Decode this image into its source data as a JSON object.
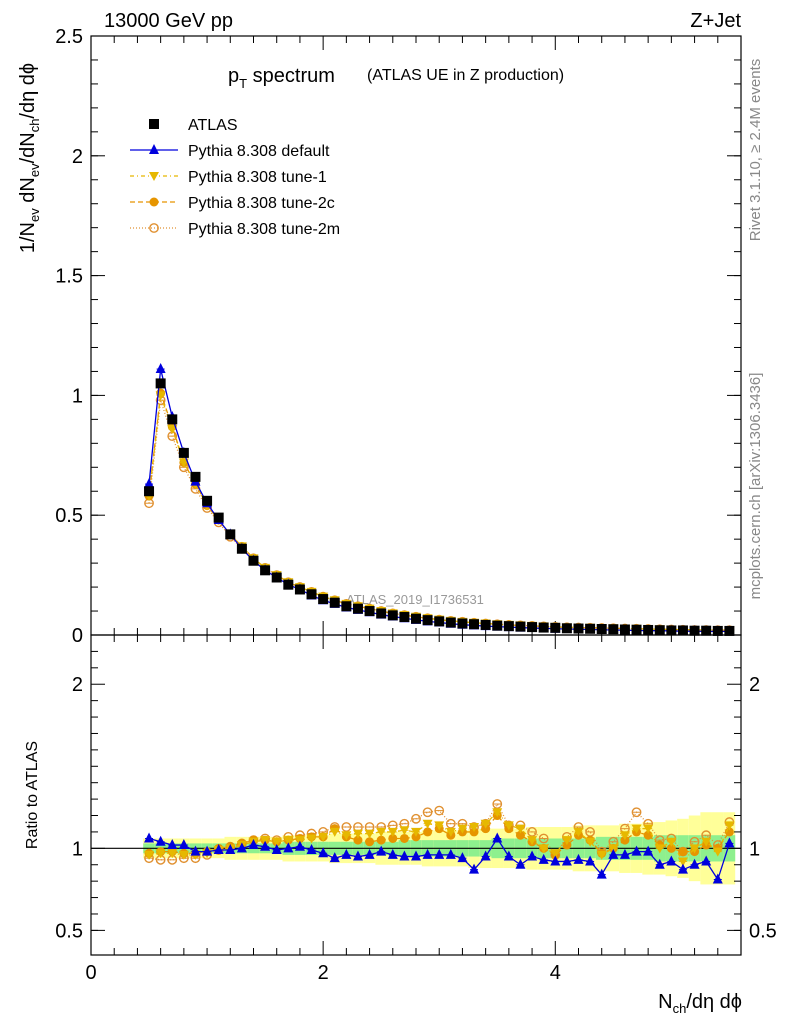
{
  "header": {
    "left": "13000 GeV pp",
    "right": "Z+Jet"
  },
  "plot_title": {
    "main": "p",
    "main_sub": "T",
    "main_rest": " spectrum",
    "paren": "(ATLAS UE in Z production)"
  },
  "side_labels": {
    "rivet": "Rivet 3.1.10, ≥ 2.4M events",
    "mcplots": "mcplots.cern.ch [arXiv:1306.3436]"
  },
  "watermark": "ATLAS_2019_I1736531",
  "colors": {
    "data": "#000000",
    "default": "#0000dd",
    "tune1": "#e6b800",
    "tune2c": "#e69500",
    "tune2m": "#e09030",
    "band_inner": "#8ef08e",
    "band_outer": "#ffff99"
  },
  "chart_data": [
    {
      "type": "line",
      "panel": "main",
      "ylabel": "1/N_ev dN_ev/dN_ch/dη dϕ",
      "xlim": [
        0,
        5.6
      ],
      "ylim": [
        0,
        2.5
      ],
      "yticks": [
        "0",
        "0.5",
        "1",
        "1.5",
        "2",
        "2.5"
      ],
      "x": [
        0.5,
        0.6,
        0.7,
        0.8,
        0.9,
        1.0,
        1.1,
        1.2,
        1.3,
        1.4,
        1.5,
        1.6,
        1.7,
        1.8,
        1.9,
        2.0,
        2.1,
        2.2,
        2.3,
        2.4,
        2.5,
        2.6,
        2.7,
        2.8,
        2.9,
        3.0,
        3.1,
        3.2,
        3.3,
        3.4,
        3.5,
        3.6,
        3.7,
        3.8,
        3.9,
        4.0,
        4.1,
        4.2,
        4.3,
        4.4,
        4.5,
        4.6,
        4.7,
        4.8,
        4.9,
        5.0,
        5.1,
        5.2,
        5.3,
        5.4,
        5.5
      ],
      "series": [
        {
          "name": "ATLAS",
          "marker": "square",
          "values": [
            0.6,
            1.05,
            0.9,
            0.76,
            0.66,
            0.56,
            0.49,
            0.42,
            0.36,
            0.31,
            0.27,
            0.24,
            0.21,
            0.19,
            0.17,
            0.15,
            0.135,
            0.12,
            0.11,
            0.1,
            0.09,
            0.082,
            0.075,
            0.068,
            0.062,
            0.057,
            0.052,
            0.048,
            0.045,
            0.042,
            0.039,
            0.037,
            0.035,
            0.033,
            0.031,
            0.03,
            0.028,
            0.027,
            0.026,
            0.025,
            0.024,
            0.023,
            0.022,
            0.021,
            0.02,
            0.019,
            0.019,
            0.018,
            0.018,
            0.017,
            0.017
          ]
        },
        {
          "name": "Pythia 8.308 default",
          "marker": "triangle-up",
          "values": [
            0.63,
            1.11,
            0.91,
            0.76,
            0.64,
            0.55,
            0.48,
            0.42,
            0.36,
            0.31,
            0.27,
            0.24,
            0.21,
            0.19,
            0.165,
            0.145,
            0.13,
            0.115,
            0.105,
            0.095,
            0.085,
            0.077,
            0.07,
            0.063,
            0.057,
            0.052,
            0.047,
            0.043,
            0.04,
            0.037,
            0.035,
            0.033,
            0.031,
            0.029,
            0.028,
            0.026,
            0.025,
            0.024,
            0.023,
            0.022,
            0.021,
            0.02,
            0.019,
            0.018,
            0.018,
            0.017,
            0.016,
            0.016,
            0.015,
            0.015,
            0.015
          ]
        },
        {
          "name": "Pythia 8.308 tune-1",
          "marker": "triangle-down",
          "values": [
            0.58,
            1.0,
            0.86,
            0.72,
            0.63,
            0.54,
            0.48,
            0.42,
            0.37,
            0.32,
            0.28,
            0.25,
            0.22,
            0.2,
            0.18,
            0.16,
            0.145,
            0.13,
            0.12,
            0.11,
            0.1,
            0.09,
            0.083,
            0.076,
            0.07,
            0.064,
            0.059,
            0.055,
            0.051,
            0.048,
            0.045,
            0.042,
            0.04,
            0.038,
            0.036,
            0.034,
            0.032,
            0.031,
            0.03,
            0.029,
            0.028,
            0.027,
            0.026,
            0.025,
            0.024,
            0.023,
            0.022,
            0.021,
            0.021,
            0.02,
            0.02
          ]
        },
        {
          "name": "Pythia 8.308 tune-2c",
          "marker": "circle",
          "values": [
            0.58,
            1.01,
            0.87,
            0.72,
            0.63,
            0.54,
            0.48,
            0.42,
            0.37,
            0.32,
            0.28,
            0.25,
            0.22,
            0.2,
            0.18,
            0.16,
            0.145,
            0.13,
            0.12,
            0.11,
            0.1,
            0.09,
            0.083,
            0.076,
            0.07,
            0.064,
            0.059,
            0.055,
            0.051,
            0.048,
            0.045,
            0.042,
            0.04,
            0.038,
            0.036,
            0.034,
            0.032,
            0.031,
            0.03,
            0.029,
            0.028,
            0.027,
            0.026,
            0.025,
            0.024,
            0.023,
            0.022,
            0.021,
            0.021,
            0.02,
            0.02
          ]
        },
        {
          "name": "Pythia 8.308 tune-2m",
          "marker": "open-circle",
          "values": [
            0.55,
            0.98,
            0.83,
            0.7,
            0.61,
            0.53,
            0.47,
            0.41,
            0.36,
            0.32,
            0.28,
            0.25,
            0.22,
            0.2,
            0.18,
            0.16,
            0.145,
            0.13,
            0.12,
            0.11,
            0.1,
            0.09,
            0.083,
            0.076,
            0.07,
            0.064,
            0.059,
            0.055,
            0.051,
            0.048,
            0.045,
            0.042,
            0.04,
            0.038,
            0.036,
            0.034,
            0.032,
            0.031,
            0.03,
            0.029,
            0.028,
            0.027,
            0.026,
            0.025,
            0.024,
            0.023,
            0.022,
            0.021,
            0.021,
            0.02,
            0.02
          ]
        }
      ]
    },
    {
      "type": "line",
      "panel": "ratio",
      "xlabel": "N_ch/dη dϕ",
      "ylabel": "Ratio to ATLAS",
      "xlim": [
        0,
        5.6
      ],
      "ylim": [
        0.35,
        2.3
      ],
      "xticks": [
        "0",
        "2",
        "4"
      ],
      "yticks": [
        "0.5",
        "1",
        "2"
      ],
      "x": [
        0.5,
        0.6,
        0.7,
        0.8,
        0.9,
        1.0,
        1.1,
        1.2,
        1.3,
        1.4,
        1.5,
        1.6,
        1.7,
        1.8,
        1.9,
        2.0,
        2.1,
        2.2,
        2.3,
        2.4,
        2.5,
        2.6,
        2.7,
        2.8,
        2.9,
        3.0,
        3.1,
        3.2,
        3.3,
        3.4,
        3.5,
        3.6,
        3.7,
        3.8,
        3.9,
        4.0,
        4.1,
        4.2,
        4.3,
        4.4,
        4.5,
        4.6,
        4.7,
        4.8,
        4.9,
        5.0,
        5.1,
        5.2,
        5.3,
        5.4,
        5.5
      ],
      "band_inner": [
        0.03,
        0.03,
        0.03,
        0.03,
        0.03,
        0.03,
        0.03,
        0.03,
        0.03,
        0.03,
        0.03,
        0.03,
        0.04,
        0.04,
        0.04,
        0.04,
        0.04,
        0.04,
        0.04,
        0.04,
        0.04,
        0.04,
        0.05,
        0.05,
        0.05,
        0.05,
        0.05,
        0.05,
        0.05,
        0.05,
        0.06,
        0.06,
        0.06,
        0.06,
        0.06,
        0.06,
        0.06,
        0.06,
        0.06,
        0.07,
        0.07,
        0.07,
        0.07,
        0.07,
        0.08,
        0.08,
        0.08,
        0.08,
        0.08,
        0.08,
        0.08
      ],
      "band_outer": [
        0.06,
        0.06,
        0.06,
        0.06,
        0.06,
        0.06,
        0.06,
        0.07,
        0.07,
        0.07,
        0.07,
        0.07,
        0.08,
        0.08,
        0.08,
        0.08,
        0.09,
        0.09,
        0.09,
        0.09,
        0.1,
        0.1,
        0.1,
        0.1,
        0.11,
        0.11,
        0.11,
        0.11,
        0.12,
        0.12,
        0.12,
        0.12,
        0.12,
        0.13,
        0.13,
        0.13,
        0.13,
        0.14,
        0.14,
        0.14,
        0.14,
        0.15,
        0.15,
        0.16,
        0.16,
        0.17,
        0.18,
        0.2,
        0.22,
        0.22,
        0.22
      ],
      "series": [
        {
          "name": "Pythia 8.308 default",
          "marker": "triangle-up",
          "values": [
            1.06,
            1.04,
            1.02,
            1.02,
            0.98,
            0.98,
            0.99,
            0.99,
            1.0,
            1.02,
            1.01,
            0.99,
            1.0,
            1.01,
            0.99,
            0.97,
            0.94,
            0.96,
            0.95,
            0.96,
            0.98,
            0.96,
            0.95,
            0.95,
            0.96,
            0.96,
            0.96,
            0.94,
            0.87,
            0.95,
            1.06,
            0.95,
            0.9,
            0.95,
            0.93,
            0.92,
            0.92,
            0.93,
            0.92,
            0.84,
            0.96,
            0.96,
            0.98,
            0.98,
            0.9,
            0.92,
            0.87,
            0.9,
            0.92,
            0.81,
            1.03
          ]
        },
        {
          "name": "Pythia 8.308 tune-1",
          "marker": "triangle-down",
          "values": [
            0.96,
            0.97,
            0.97,
            0.96,
            0.96,
            0.97,
            0.99,
            1.0,
            1.02,
            1.04,
            1.05,
            1.04,
            1.05,
            1.05,
            1.06,
            1.07,
            1.1,
            1.08,
            1.09,
            1.09,
            1.1,
            1.1,
            1.11,
            1.1,
            1.15,
            1.14,
            1.1,
            1.12,
            1.13,
            1.15,
            1.22,
            1.14,
            1.12,
            1.05,
            1.0,
            0.97,
            1.05,
            1.1,
            1.04,
            0.96,
            1.0,
            1.08,
            1.12,
            1.12,
            1.0,
            1.04,
            0.92,
            1.0,
            1.04,
            0.98,
            1.14
          ]
        },
        {
          "name": "Pythia 8.308 tune-2c",
          "marker": "circle",
          "values": [
            0.97,
            0.98,
            0.98,
            0.97,
            0.97,
            0.98,
            1.0,
            1.01,
            1.03,
            1.05,
            1.05,
            1.04,
            1.05,
            1.06,
            1.07,
            1.07,
            1.12,
            1.07,
            1.05,
            1.04,
            1.05,
            1.06,
            1.06,
            1.07,
            1.1,
            1.12,
            1.08,
            1.1,
            1.1,
            1.12,
            1.2,
            1.12,
            1.08,
            1.04,
            1.0,
            0.96,
            1.02,
            1.08,
            1.05,
            0.97,
            1.0,
            1.05,
            1.1,
            1.08,
            1.02,
            1.0,
            0.98,
            0.98,
            1.02,
            1.0,
            1.1
          ]
        },
        {
          "name": "Pythia 8.308 tune-2m",
          "marker": "open-circle",
          "values": [
            0.94,
            0.93,
            0.93,
            0.94,
            0.94,
            0.96,
            0.99,
            1.01,
            1.03,
            1.05,
            1.06,
            1.05,
            1.07,
            1.08,
            1.09,
            1.1,
            1.13,
            1.13,
            1.13,
            1.13,
            1.13,
            1.14,
            1.15,
            1.18,
            1.22,
            1.23,
            1.15,
            1.15,
            1.13,
            1.15,
            1.27,
            1.14,
            1.14,
            1.1,
            1.06,
            0.96,
            1.07,
            1.13,
            1.1,
            0.98,
            1.04,
            1.12,
            1.22,
            1.15,
            1.05,
            1.06,
            0.98,
            1.04,
            1.08,
            1.02,
            1.16
          ]
        }
      ]
    }
  ]
}
